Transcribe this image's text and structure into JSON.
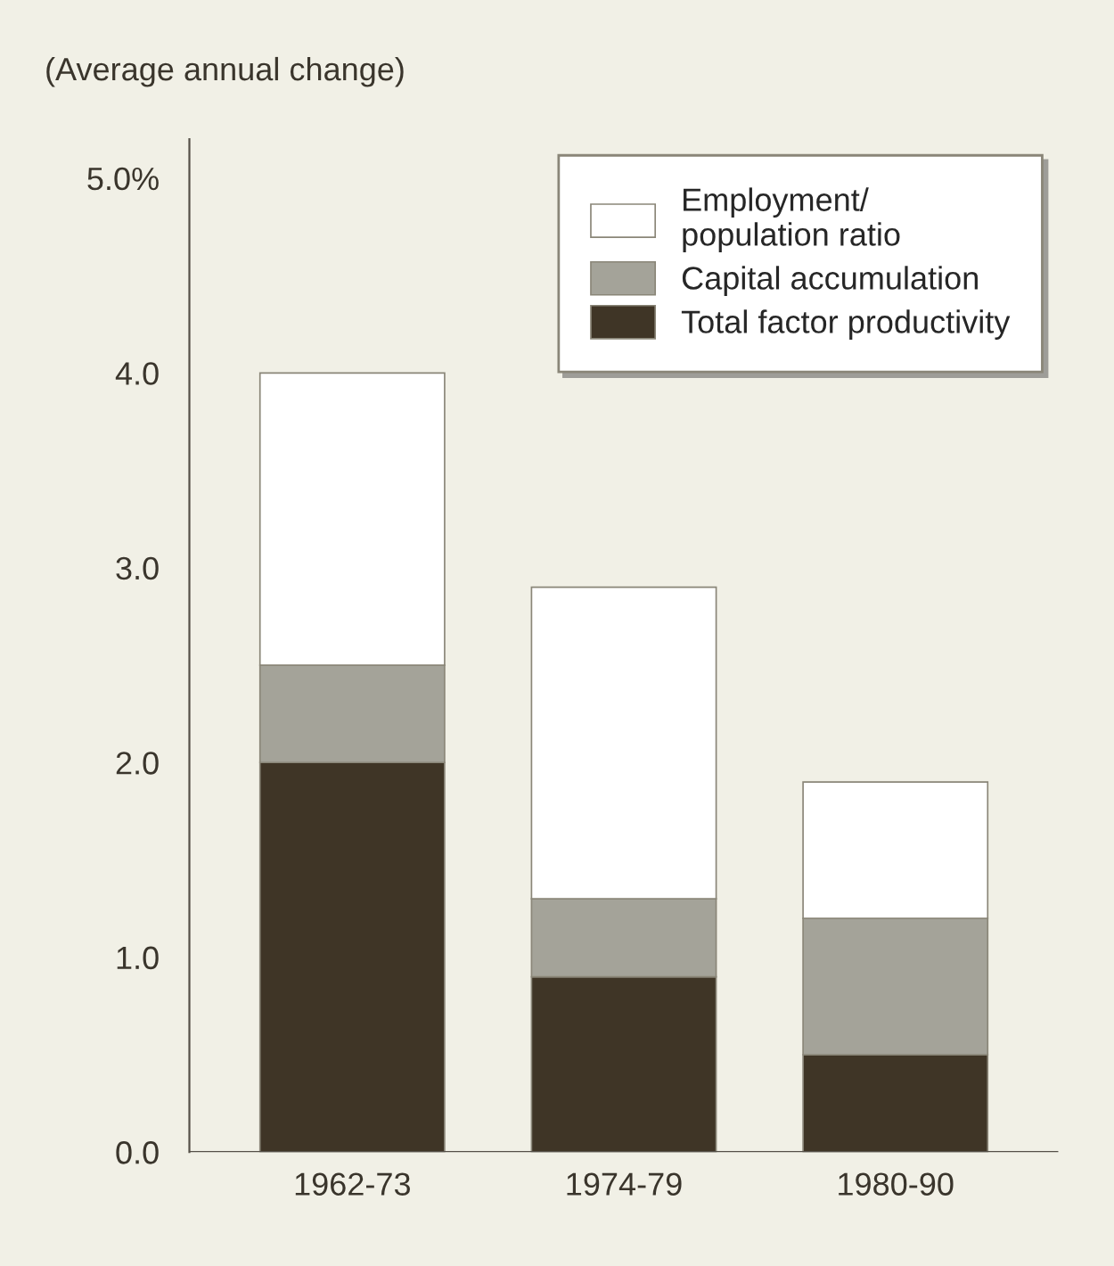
{
  "chart_data": {
    "type": "bar",
    "stacked": true,
    "ylabel": "(Average annual change)",
    "categories": [
      "1962-73",
      "1974-79",
      "1980-90"
    ],
    "series": [
      {
        "name": "Total factor productivity",
        "color": "#3f3526",
        "values": [
          2.0,
          0.9,
          0.5
        ]
      },
      {
        "name": "Capital accumulation",
        "color": "#a4a399",
        "values": [
          0.5,
          0.4,
          0.7
        ]
      },
      {
        "name": "Employment/\npopulation ratio",
        "color": "#ffffff",
        "values": [
          1.5,
          1.6,
          0.7
        ]
      }
    ],
    "ylim": [
      0,
      5.2
    ],
    "yticks": [
      {
        "value": 0,
        "label": "0.0"
      },
      {
        "value": 1,
        "label": "1.0"
      },
      {
        "value": 2,
        "label": "2.0"
      },
      {
        "value": 3,
        "label": "3.0"
      },
      {
        "value": 4,
        "label": "4.0"
      },
      {
        "value": 5,
        "label": "5.0%"
      }
    ],
    "grid": false,
    "legend": "top right"
  }
}
